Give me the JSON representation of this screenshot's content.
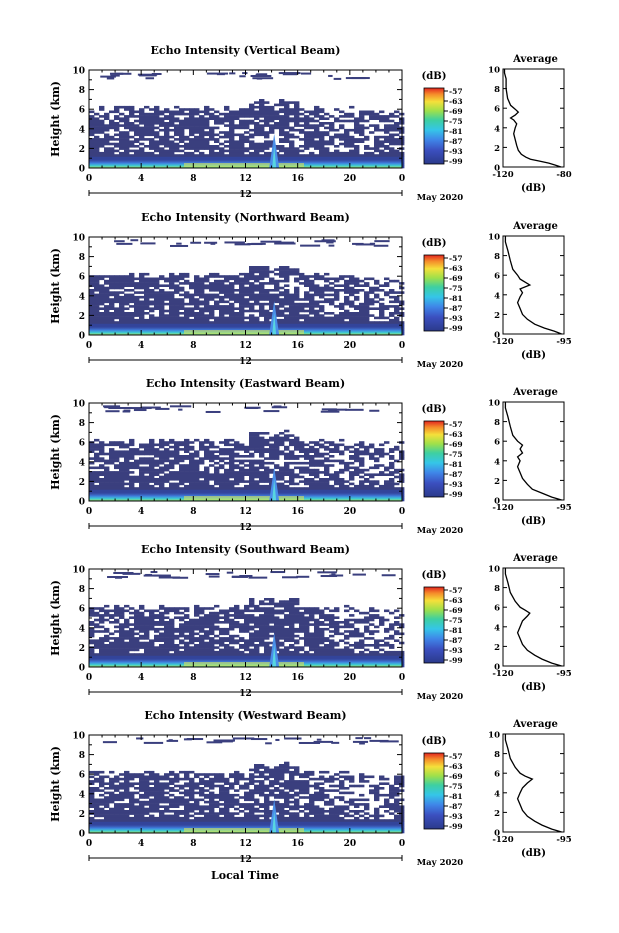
{
  "figure": {
    "xlabel": "Local Time",
    "date_label": "May 2020",
    "day_marker": "12",
    "colorbar_unit": "(dB)",
    "avg_title": "Average",
    "avg_xlabel": "(dB)"
  },
  "chart_data": [
    {
      "type": "heatmap",
      "title": "Echo Intensity (Vertical Beam)",
      "ylabel": "Height (km)",
      "xlabel": "Local Time",
      "x_ticks": [
        "0",
        "4",
        "8",
        "12",
        "16",
        "20",
        "0"
      ],
      "y_ticks": [
        "0",
        "2",
        "4",
        "6",
        "8",
        "10"
      ],
      "xlim": [
        0,
        24
      ],
      "ylim": [
        0,
        10
      ],
      "colorbar": {
        "label": "(dB)",
        "ticks": [
          "-57",
          "-63",
          "-69",
          "-75",
          "-81",
          "-87",
          "-93",
          "-99"
        ],
        "range": [
          -99,
          -57
        ]
      },
      "average_profile": {
        "title": "Average",
        "xlabel": "(dB)",
        "x_ticks": [
          "-120",
          "-80"
        ],
        "xlim": [
          -120,
          -80
        ],
        "y_ticks": [
          "0",
          "2",
          "4",
          "6",
          "8",
          "10"
        ],
        "points": [
          [
            -82,
            0
          ],
          [
            -86,
            0.2
          ],
          [
            -90,
            0.4
          ],
          [
            -96,
            0.6
          ],
          [
            -102,
            0.8
          ],
          [
            -105,
            1.0
          ],
          [
            -108,
            1.3
          ],
          [
            -110,
            1.7
          ],
          [
            -111,
            2.2
          ],
          [
            -112,
            2.8
          ],
          [
            -113,
            3.4
          ],
          [
            -112,
            4.0
          ],
          [
            -111,
            4.4
          ],
          [
            -113,
            4.8
          ],
          [
            -115,
            5.0
          ],
          [
            -112,
            5.3
          ],
          [
            -110,
            5.6
          ],
          [
            -112,
            5.9
          ],
          [
            -115,
            6.3
          ],
          [
            -117,
            7.0
          ],
          [
            -118,
            8.0
          ],
          [
            -118,
            9.0
          ],
          [
            -119,
            9.6
          ],
          [
            -119,
            10
          ]
        ]
      }
    },
    {
      "type": "heatmap",
      "title": "Echo Intensity (Northward Beam)",
      "ylabel": "Height (km)",
      "xlabel": "Local Time",
      "x_ticks": [
        "0",
        "4",
        "8",
        "12",
        "16",
        "20",
        "0"
      ],
      "y_ticks": [
        "0",
        "2",
        "4",
        "6",
        "8",
        "10"
      ],
      "xlim": [
        0,
        24
      ],
      "ylim": [
        0,
        10
      ],
      "colorbar": {
        "label": "(dB)",
        "ticks": [
          "-57",
          "-63",
          "-69",
          "-75",
          "-81",
          "-87",
          "-93",
          "-99"
        ],
        "range": [
          -99,
          -57
        ]
      },
      "average_profile": {
        "title": "Average",
        "xlabel": "(dB)",
        "x_ticks": [
          "-120",
          "-95"
        ],
        "xlim": [
          -120,
          -95
        ],
        "y_ticks": [
          "0",
          "2",
          "4",
          "6",
          "8",
          "10"
        ],
        "points": [
          [
            -96,
            0
          ],
          [
            -99,
            0.3
          ],
          [
            -103,
            0.6
          ],
          [
            -107,
            1.0
          ],
          [
            -110,
            1.5
          ],
          [
            -112,
            2.0
          ],
          [
            -113,
            2.6
          ],
          [
            -114,
            3.2
          ],
          [
            -113,
            3.8
          ],
          [
            -112,
            4.2
          ],
          [
            -113,
            4.6
          ],
          [
            -109,
            5.0
          ],
          [
            -111,
            5.3
          ],
          [
            -113,
            5.6
          ],
          [
            -114,
            6.0
          ],
          [
            -116,
            6.6
          ],
          [
            -117,
            7.5
          ],
          [
            -118,
            8.5
          ],
          [
            -119,
            9.4
          ],
          [
            -119,
            10
          ]
        ]
      }
    },
    {
      "type": "heatmap",
      "title": "Echo Intensity (Eastward Beam)",
      "ylabel": "Height (km)",
      "xlabel": "Local Time",
      "x_ticks": [
        "0",
        "4",
        "8",
        "12",
        "16",
        "20",
        "0"
      ],
      "y_ticks": [
        "0",
        "2",
        "4",
        "6",
        "8",
        "10"
      ],
      "xlim": [
        0,
        24
      ],
      "ylim": [
        0,
        10
      ],
      "colorbar": {
        "label": "(dB)",
        "ticks": [
          "-57",
          "-63",
          "-69",
          "-75",
          "-81",
          "-87",
          "-93",
          "-99"
        ],
        "range": [
          -99,
          -57
        ]
      },
      "average_profile": {
        "title": "Average",
        "xlabel": "(dB)",
        "x_ticks": [
          "-120",
          "-95"
        ],
        "xlim": [
          -120,
          -95
        ],
        "y_ticks": [
          "0",
          "2",
          "4",
          "6",
          "8",
          "10"
        ],
        "points": [
          [
            -96,
            0
          ],
          [
            -100,
            0.3
          ],
          [
            -104,
            0.7
          ],
          [
            -108,
            1.1
          ],
          [
            -110,
            1.6
          ],
          [
            -112,
            2.2
          ],
          [
            -113,
            2.8
          ],
          [
            -114,
            3.4
          ],
          [
            -113,
            4.0
          ],
          [
            -114,
            4.4
          ],
          [
            -112,
            4.8
          ],
          [
            -113,
            5.2
          ],
          [
            -112,
            5.6
          ],
          [
            -114,
            6.0
          ],
          [
            -116,
            6.6
          ],
          [
            -117,
            7.5
          ],
          [
            -118,
            8.5
          ],
          [
            -119,
            9.4
          ],
          [
            -119,
            10
          ]
        ]
      }
    },
    {
      "type": "heatmap",
      "title": "Echo Intensity (Southward Beam)",
      "ylabel": "Height (km)",
      "xlabel": "Local Time",
      "x_ticks": [
        "0",
        "4",
        "8",
        "12",
        "16",
        "20",
        "0"
      ],
      "y_ticks": [
        "0",
        "2",
        "4",
        "6",
        "8",
        "10"
      ],
      "xlim": [
        0,
        24
      ],
      "ylim": [
        0,
        10
      ],
      "colorbar": {
        "label": "(dB)",
        "ticks": [
          "-57",
          "-63",
          "-69",
          "-75",
          "-81",
          "-87",
          "-93",
          "-99"
        ],
        "range": [
          -99,
          -57
        ]
      },
      "average_profile": {
        "title": "Average",
        "xlabel": "(dB)",
        "x_ticks": [
          "-120",
          "-95"
        ],
        "xlim": [
          -120,
          -95
        ],
        "y_ticks": [
          "0",
          "2",
          "4",
          "6",
          "8",
          "10"
        ],
        "points": [
          [
            -96,
            0
          ],
          [
            -100,
            0.3
          ],
          [
            -104,
            0.7
          ],
          [
            -107,
            1.1
          ],
          [
            -110,
            1.6
          ],
          [
            -112,
            2.2
          ],
          [
            -113,
            2.8
          ],
          [
            -114,
            3.4
          ],
          [
            -113,
            4.0
          ],
          [
            -112,
            4.6
          ],
          [
            -110,
            5.1
          ],
          [
            -109,
            5.4
          ],
          [
            -111,
            5.7
          ],
          [
            -113,
            6.0
          ],
          [
            -115,
            6.6
          ],
          [
            -117,
            7.5
          ],
          [
            -118,
            8.5
          ],
          [
            -119,
            9.4
          ],
          [
            -119,
            10
          ]
        ]
      }
    },
    {
      "type": "heatmap",
      "title": "Echo Intensity (Westward Beam)",
      "ylabel": "Height (km)",
      "xlabel": "Local Time",
      "x_ticks": [
        "0",
        "4",
        "8",
        "12",
        "16",
        "20",
        "0"
      ],
      "y_ticks": [
        "0",
        "2",
        "4",
        "6",
        "8",
        "10"
      ],
      "xlim": [
        0,
        24
      ],
      "ylim": [
        0,
        10
      ],
      "colorbar": {
        "label": "(dB)",
        "ticks": [
          "-57",
          "-63",
          "-69",
          "-75",
          "-81",
          "-87",
          "-93",
          "-99"
        ],
        "range": [
          -99,
          -57
        ]
      },
      "average_profile": {
        "title": "Average",
        "xlabel": "(dB)",
        "x_ticks": [
          "-120",
          "-95"
        ],
        "xlim": [
          -120,
          -95
        ],
        "y_ticks": [
          "0",
          "2",
          "4",
          "6",
          "8",
          "10"
        ],
        "points": [
          [
            -96,
            0
          ],
          [
            -100,
            0.3
          ],
          [
            -104,
            0.7
          ],
          [
            -107,
            1.1
          ],
          [
            -110,
            1.6
          ],
          [
            -112,
            2.2
          ],
          [
            -113,
            2.8
          ],
          [
            -114,
            3.4
          ],
          [
            -113,
            4.0
          ],
          [
            -112,
            4.5
          ],
          [
            -110,
            5.0
          ],
          [
            -108,
            5.4
          ],
          [
            -111,
            5.7
          ],
          [
            -113,
            6.0
          ],
          [
            -115,
            6.6
          ],
          [
            -117,
            7.5
          ],
          [
            -118,
            8.5
          ],
          [
            -119,
            9.4
          ],
          [
            -119,
            10
          ]
        ]
      }
    }
  ]
}
